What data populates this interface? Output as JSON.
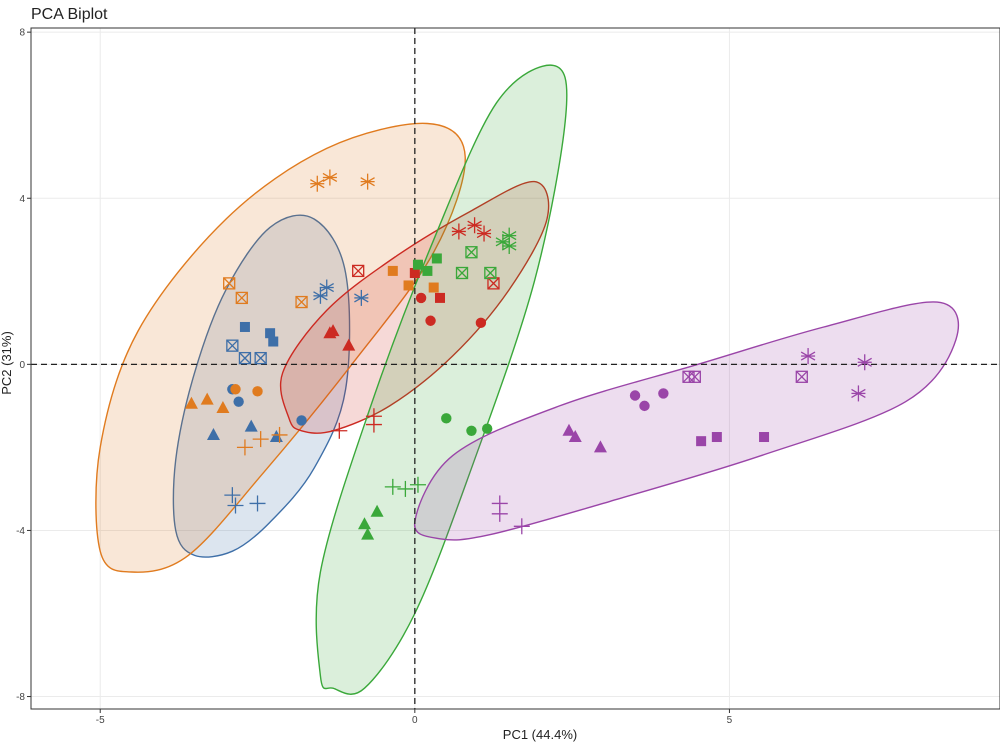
{
  "chart_data": {
    "type": "scatter",
    "title": "PCA Biplot",
    "xlabel": "PC1 (44.4%)",
    "ylabel": "PC2 (31%)",
    "xlim": [
      -6.1,
      9.3
    ],
    "ylim": [
      -8.3,
      8.1
    ],
    "xticks": [
      -5,
      0,
      5
    ],
    "yticks": [
      8,
      4,
      0,
      -4,
      -8
    ],
    "xtick_labels": [
      "-5",
      "0",
      "5"
    ],
    "ytick_labels": [
      "8",
      "4",
      "0",
      "-4",
      "-8"
    ],
    "grid": true,
    "reference_lines": {
      "x": 0,
      "y": 0,
      "style": "dashed"
    },
    "legend": "none",
    "groups": [
      {
        "color": "#3e6fa8",
        "ellipse": [
          [
            -3.5,
            -4.6
          ],
          [
            -3.8,
            -4.0
          ],
          [
            -3.8,
            -2.3
          ],
          [
            -3.5,
            -0.2
          ],
          [
            -3.0,
            1.8
          ],
          [
            -2.3,
            3.3
          ],
          [
            -1.6,
            3.5
          ],
          [
            -1.1,
            2.2
          ],
          [
            -1.1,
            -0.6
          ],
          [
            -1.6,
            -2.5
          ],
          [
            -2.3,
            -3.8
          ],
          [
            -2.9,
            -4.5
          ]
        ],
        "points": [
          {
            "x": -2.9,
            "y": -0.6,
            "marker": "circle"
          },
          {
            "x": -2.8,
            "y": -0.9,
            "marker": "circle"
          },
          {
            "x": -1.8,
            "y": -1.35,
            "marker": "circle"
          },
          {
            "x": -3.2,
            "y": -1.7,
            "marker": "triangle"
          },
          {
            "x": -2.6,
            "y": -1.5,
            "marker": "triangle"
          },
          {
            "x": -2.2,
            "y": -1.75,
            "marker": "triangle"
          },
          {
            "x": -2.7,
            "y": 0.9,
            "marker": "square"
          },
          {
            "x": -2.3,
            "y": 0.75,
            "marker": "square"
          },
          {
            "x": -2.25,
            "y": 0.55,
            "marker": "square"
          },
          {
            "x": -2.9,
            "y": 0.45,
            "marker": "boxcross"
          },
          {
            "x": -2.7,
            "y": 0.15,
            "marker": "boxcross"
          },
          {
            "x": -2.45,
            "y": 0.15,
            "marker": "boxcross"
          },
          {
            "x": -2.9,
            "y": -3.15,
            "marker": "plus"
          },
          {
            "x": -2.85,
            "y": -3.4,
            "marker": "plus"
          },
          {
            "x": -2.5,
            "y": -3.35,
            "marker": "plus"
          },
          {
            "x": -1.5,
            "y": 1.65,
            "marker": "asterisk"
          },
          {
            "x": -1.4,
            "y": 1.85,
            "marker": "asterisk"
          },
          {
            "x": -0.85,
            "y": 1.6,
            "marker": "asterisk"
          }
        ]
      },
      {
        "color": "#e07b1f",
        "ellipse": [
          [
            -5.0,
            -4.5
          ],
          [
            -5.0,
            -2.0
          ],
          [
            -4.4,
            0.8
          ],
          [
            -3.0,
            3.5
          ],
          [
            -1.4,
            5.2
          ],
          [
            0.2,
            5.8
          ],
          [
            0.8,
            5.0
          ],
          [
            0.3,
            2.7
          ],
          [
            -1.0,
            0.0
          ],
          [
            -2.4,
            -2.6
          ],
          [
            -3.6,
            -4.6
          ],
          [
            -4.5,
            -5.0
          ]
        ],
        "points": [
          {
            "x": -2.85,
            "y": -0.6,
            "marker": "circle"
          },
          {
            "x": -2.5,
            "y": -0.65,
            "marker": "circle"
          },
          {
            "x": -3.55,
            "y": -0.95,
            "marker": "triangle"
          },
          {
            "x": -3.3,
            "y": -0.85,
            "marker": "triangle"
          },
          {
            "x": -3.05,
            "y": -1.05,
            "marker": "triangle"
          },
          {
            "x": -0.35,
            "y": 2.25,
            "marker": "square"
          },
          {
            "x": -0.1,
            "y": 1.9,
            "marker": "square"
          },
          {
            "x": 0.3,
            "y": 1.85,
            "marker": "square"
          },
          {
            "x": -2.95,
            "y": 1.95,
            "marker": "boxcross"
          },
          {
            "x": -2.75,
            "y": 1.6,
            "marker": "boxcross"
          },
          {
            "x": -1.8,
            "y": 1.5,
            "marker": "boxcross"
          },
          {
            "x": -2.7,
            "y": -2.0,
            "marker": "plus"
          },
          {
            "x": -2.45,
            "y": -1.8,
            "marker": "plus"
          },
          {
            "x": -2.15,
            "y": -1.7,
            "marker": "plus"
          },
          {
            "x": -1.55,
            "y": 4.35,
            "marker": "asterisk"
          },
          {
            "x": -1.35,
            "y": 4.5,
            "marker": "asterisk"
          },
          {
            "x": -0.75,
            "y": 4.4,
            "marker": "asterisk"
          }
        ]
      },
      {
        "color": "#cc2a22",
        "ellipse": [
          [
            -2.0,
            -1.3
          ],
          [
            -2.1,
            -0.2
          ],
          [
            -1.4,
            1.3
          ],
          [
            -0.3,
            2.6
          ],
          [
            0.9,
            3.7
          ],
          [
            1.9,
            4.4
          ],
          [
            2.1,
            3.5
          ],
          [
            1.5,
            1.8
          ],
          [
            0.6,
            0.2
          ],
          [
            -0.4,
            -1.0
          ],
          [
            -1.3,
            -1.6
          ],
          [
            -1.8,
            -1.6
          ]
        ],
        "points": [
          {
            "x": 0.1,
            "y": 1.6,
            "marker": "circle"
          },
          {
            "x": 0.25,
            "y": 1.05,
            "marker": "circle"
          },
          {
            "x": 1.05,
            "y": 1.0,
            "marker": "circle"
          },
          {
            "x": -1.35,
            "y": 0.75,
            "marker": "triangle"
          },
          {
            "x": -1.3,
            "y": 0.8,
            "marker": "triangle"
          },
          {
            "x": -1.05,
            "y": 0.45,
            "marker": "triangle"
          },
          {
            "x": 0.0,
            "y": 2.2,
            "marker": "square"
          },
          {
            "x": 0.4,
            "y": 1.6,
            "marker": "square"
          },
          {
            "x": -0.9,
            "y": 2.25,
            "marker": "boxcross"
          },
          {
            "x": 1.25,
            "y": 1.95,
            "marker": "boxcross"
          },
          {
            "x": -1.2,
            "y": -1.6,
            "marker": "plus"
          },
          {
            "x": -0.65,
            "y": -1.25,
            "marker": "plus"
          },
          {
            "x": -0.65,
            "y": -1.45,
            "marker": "plus"
          },
          {
            "x": 0.7,
            "y": 3.2,
            "marker": "asterisk"
          },
          {
            "x": 0.95,
            "y": 3.35,
            "marker": "asterisk"
          },
          {
            "x": 1.1,
            "y": 3.15,
            "marker": "asterisk"
          }
        ]
      },
      {
        "color": "#3aa83a",
        "ellipse": [
          [
            -1.5,
            -7.5
          ],
          [
            -1.5,
            -5.0
          ],
          [
            -0.7,
            -1.0
          ],
          [
            0.3,
            3.0
          ],
          [
            1.3,
            6.3
          ],
          [
            2.2,
            7.2
          ],
          [
            2.4,
            6.0
          ],
          [
            1.9,
            2.0
          ],
          [
            0.9,
            -2.5
          ],
          [
            0.0,
            -6.0
          ],
          [
            -0.8,
            -7.8
          ],
          [
            -1.3,
            -7.8
          ]
        ],
        "points": [
          {
            "x": 0.5,
            "y": -1.3,
            "marker": "circle"
          },
          {
            "x": 0.9,
            "y": -1.6,
            "marker": "circle"
          },
          {
            "x": 1.15,
            "y": -1.55,
            "marker": "circle"
          },
          {
            "x": -0.8,
            "y": -3.85,
            "marker": "triangle"
          },
          {
            "x": -0.6,
            "y": -3.55,
            "marker": "triangle"
          },
          {
            "x": -0.75,
            "y": -4.1,
            "marker": "triangle"
          },
          {
            "x": 0.05,
            "y": 2.4,
            "marker": "square"
          },
          {
            "x": 0.2,
            "y": 2.25,
            "marker": "square"
          },
          {
            "x": 0.35,
            "y": 2.55,
            "marker": "square"
          },
          {
            "x": 0.75,
            "y": 2.2,
            "marker": "boxcross"
          },
          {
            "x": 0.9,
            "y": 2.7,
            "marker": "boxcross"
          },
          {
            "x": 1.2,
            "y": 2.2,
            "marker": "boxcross"
          },
          {
            "x": -0.35,
            "y": -2.95,
            "marker": "plus"
          },
          {
            "x": -0.15,
            "y": -3.0,
            "marker": "plus"
          },
          {
            "x": 0.05,
            "y": -2.9,
            "marker": "plus"
          },
          {
            "x": 1.4,
            "y": 2.95,
            "marker": "asterisk"
          },
          {
            "x": 1.5,
            "y": 3.1,
            "marker": "asterisk"
          },
          {
            "x": 1.5,
            "y": 2.85,
            "marker": "asterisk"
          }
        ]
      },
      {
        "color": "#9a45a8",
        "ellipse": [
          [
            0.0,
            -3.8
          ],
          [
            0.6,
            -2.2
          ],
          [
            2.3,
            -1.0
          ],
          [
            4.5,
            0.0
          ],
          [
            6.5,
            0.9
          ],
          [
            8.3,
            1.5
          ],
          [
            8.6,
            0.6
          ],
          [
            7.8,
            -0.9
          ],
          [
            5.5,
            -2.2
          ],
          [
            3.1,
            -3.3
          ],
          [
            1.2,
            -4.1
          ],
          [
            0.4,
            -4.2
          ]
        ],
        "points": [
          {
            "x": 3.5,
            "y": -0.75,
            "marker": "circle"
          },
          {
            "x": 3.65,
            "y": -1.0,
            "marker": "circle"
          },
          {
            "x": 3.95,
            "y": -0.7,
            "marker": "circle"
          },
          {
            "x": 2.45,
            "y": -1.6,
            "marker": "triangle"
          },
          {
            "x": 2.55,
            "y": -1.75,
            "marker": "triangle"
          },
          {
            "x": 2.95,
            "y": -2.0,
            "marker": "triangle"
          },
          {
            "x": 4.55,
            "y": -1.85,
            "marker": "square"
          },
          {
            "x": 4.8,
            "y": -1.75,
            "marker": "square"
          },
          {
            "x": 5.55,
            "y": -1.75,
            "marker": "square"
          },
          {
            "x": 4.35,
            "y": -0.3,
            "marker": "boxcross"
          },
          {
            "x": 4.45,
            "y": -0.3,
            "marker": "boxcross"
          },
          {
            "x": 6.15,
            "y": -0.3,
            "marker": "boxcross"
          },
          {
            "x": 1.35,
            "y": -3.35,
            "marker": "plus"
          },
          {
            "x": 1.35,
            "y": -3.6,
            "marker": "plus"
          },
          {
            "x": 1.7,
            "y": -3.9,
            "marker": "plus"
          },
          {
            "x": 6.25,
            "y": 0.2,
            "marker": "asterisk"
          },
          {
            "x": 7.15,
            "y": 0.05,
            "marker": "asterisk"
          },
          {
            "x": 7.05,
            "y": -0.7,
            "marker": "asterisk"
          }
        ]
      }
    ]
  }
}
